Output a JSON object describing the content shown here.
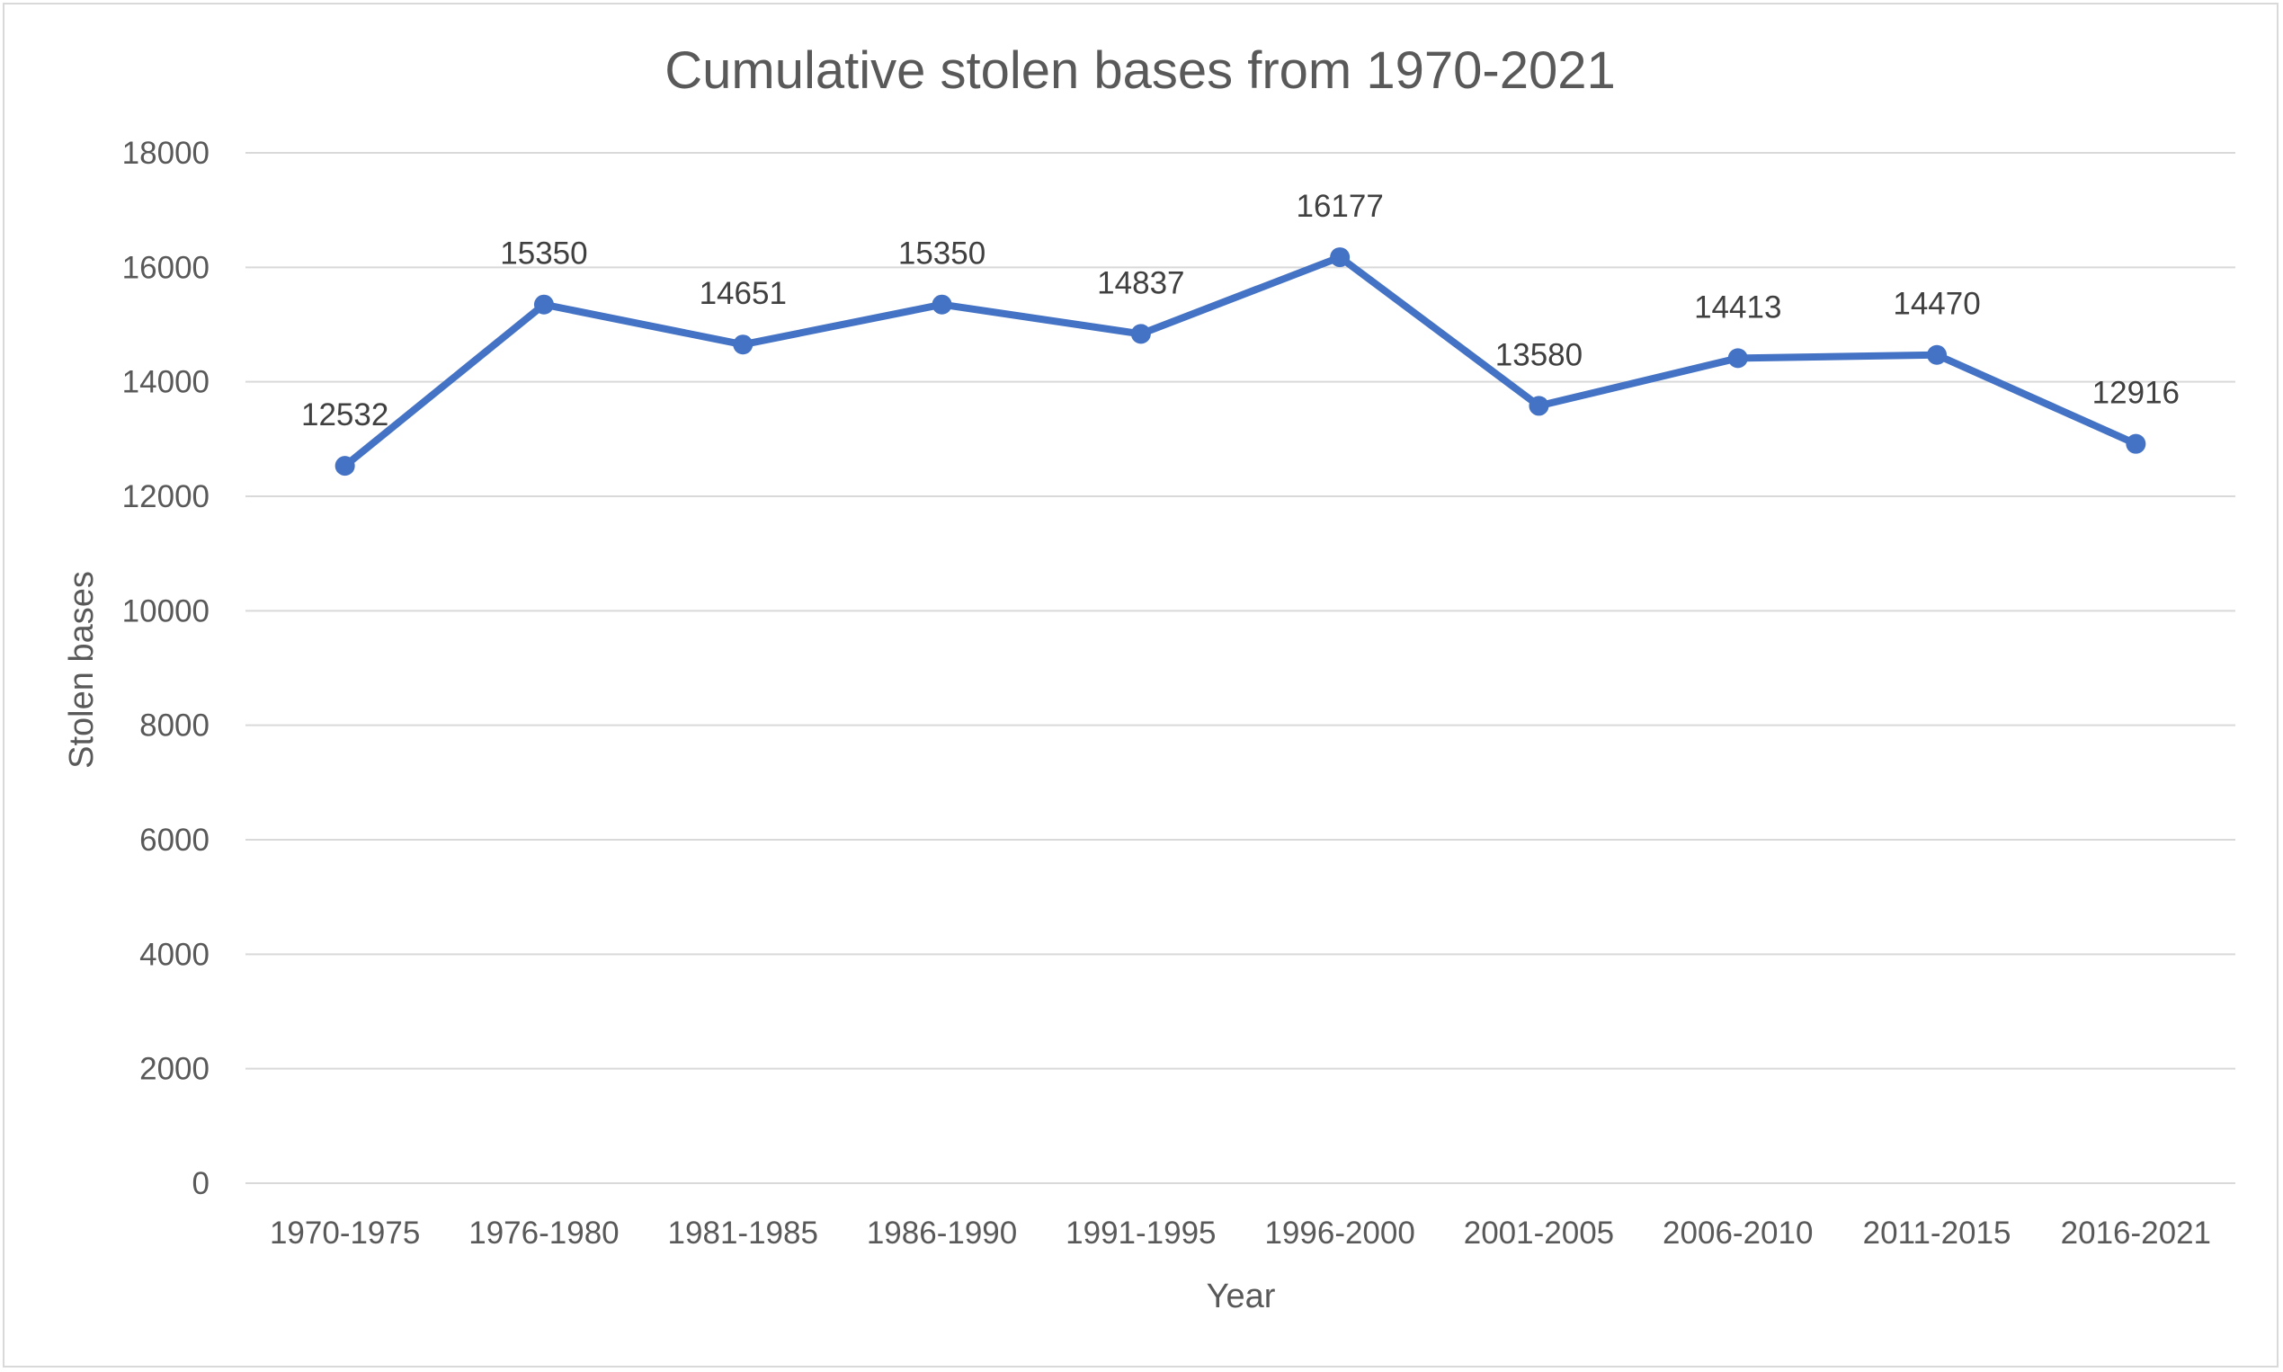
{
  "chart_data": {
    "type": "line",
    "title": "Cumulative stolen bases from 1970-2021",
    "xlabel": "Year",
    "ylabel": "Stolen bases",
    "categories": [
      "1970-1975",
      "1976-1980",
      "1981-1985",
      "1986-1990",
      "1991-1995",
      "1996-2000",
      "2001-2005",
      "2006-2010",
      "2011-2015",
      "2016-2021"
    ],
    "series": [
      {
        "values": [
          12532,
          15350,
          14651,
          15350,
          14837,
          16177,
          13580,
          14413,
          14470,
          12916
        ],
        "labels": [
          "12532",
          "15350",
          "14651",
          "15350",
          "14837",
          "16177",
          "13580",
          "14413",
          "14470",
          "12916"
        ]
      }
    ],
    "ylim": [
      0,
      18000
    ],
    "yticks": [
      "0",
      "2000",
      "4000",
      "6000",
      "8000",
      "10000",
      "12000",
      "14000",
      "16000",
      "18000"
    ],
    "grid": true,
    "legend": "none",
    "colors": {
      "series": "#4472c4",
      "gridline": "#d9d9d9",
      "text": "#595959"
    }
  }
}
